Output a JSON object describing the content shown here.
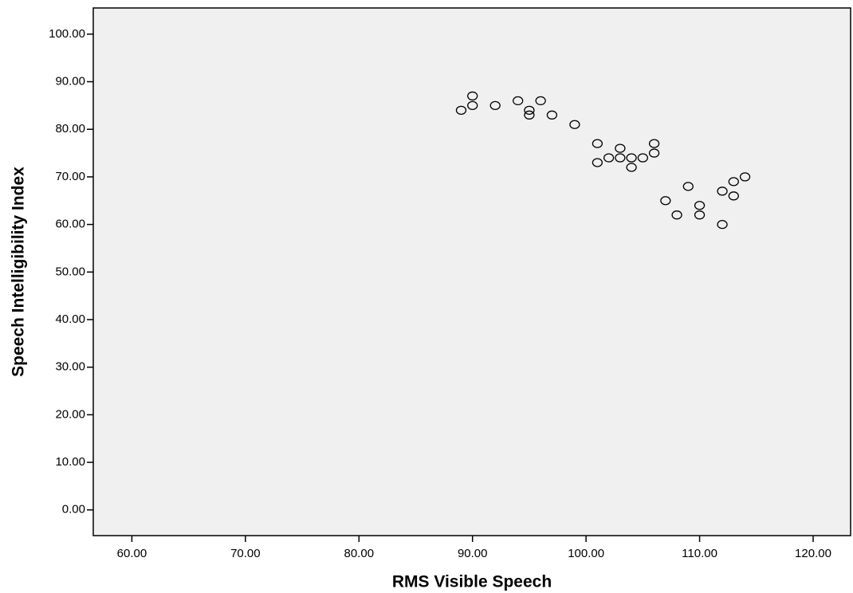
{
  "chart_data": {
    "type": "scatter",
    "x_label": "RMS Visible Speech",
    "y_label": "Speech Intelligibility Index",
    "x": [
      89,
      90,
      90,
      92,
      94,
      95,
      95,
      96,
      97,
      99,
      101,
      101,
      102,
      103,
      103,
      104,
      104,
      105,
      106,
      106,
      107,
      108,
      109,
      110,
      110,
      112,
      112,
      113,
      113,
      114
    ],
    "values": [
      84,
      87,
      85,
      85,
      86,
      84,
      83,
      86,
      83,
      81,
      77,
      73,
      74,
      76,
      74,
      74,
      72,
      74,
      77,
      75,
      65,
      62,
      68,
      64,
      62,
      67,
      60,
      69,
      66,
      70
    ],
    "color": "#000000",
    "xlim": [
      56.6,
      123.3
    ],
    "ylim": [
      -5.4,
      105.5
    ],
    "xticks": [
      {
        "value": 60,
        "label": "60.00"
      },
      {
        "value": 70,
        "label": "70.00"
      },
      {
        "value": 80,
        "label": "80.00"
      },
      {
        "value": 90,
        "label": "90.00"
      },
      {
        "value": 100,
        "label": "100.00"
      },
      {
        "value": 110,
        "label": "110.00"
      },
      {
        "value": 120,
        "label": "120.00"
      }
    ],
    "yticks": [
      {
        "value": 0,
        "label": "0.00"
      },
      {
        "value": 10,
        "label": "10.00"
      },
      {
        "value": 20,
        "label": "20.00"
      },
      {
        "value": 30,
        "label": "30.00"
      },
      {
        "value": 40,
        "label": "40.00"
      },
      {
        "value": 50,
        "label": "50.00"
      },
      {
        "value": 60,
        "label": "60.00"
      },
      {
        "value": 70,
        "label": "70.00"
      },
      {
        "value": 80,
        "label": "80.00"
      },
      {
        "value": 90,
        "label": "90.00"
      },
      {
        "value": 100,
        "label": "100.00"
      }
    ]
  }
}
